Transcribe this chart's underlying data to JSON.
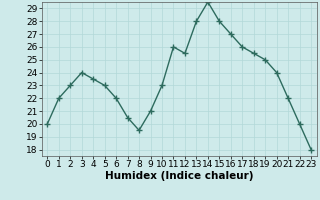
{
  "x": [
    0,
    1,
    2,
    3,
    4,
    5,
    6,
    7,
    8,
    9,
    10,
    11,
    12,
    13,
    14,
    15,
    16,
    17,
    18,
    19,
    20,
    21,
    22,
    23
  ],
  "y": [
    20,
    22,
    23,
    24,
    23.5,
    23,
    22,
    20.5,
    19.5,
    21,
    23,
    26,
    25.5,
    28,
    29.5,
    28,
    27,
    26,
    25.5,
    25,
    24,
    22,
    20,
    18
  ],
  "line_color": "#2d6b5e",
  "marker": "+",
  "marker_size": 4,
  "bg_color": "#ceeaea",
  "grid_color": "#b2d8d8",
  "xlabel": "Humidex (Indice chaleur)",
  "xlim": [
    -0.5,
    23.5
  ],
  "ylim": [
    17.5,
    29.5
  ],
  "yticks": [
    18,
    19,
    20,
    21,
    22,
    23,
    24,
    25,
    26,
    27,
    28,
    29
  ],
  "xtick_labels": [
    "0",
    "1",
    "2",
    "3",
    "4",
    "5",
    "6",
    "7",
    "8",
    "9",
    "10",
    "11",
    "12",
    "13",
    "14",
    "15",
    "16",
    "17",
    "18",
    "19",
    "20",
    "21",
    "22",
    "23"
  ],
  "tick_fontsize": 6.5,
  "xlabel_fontsize": 7.5,
  "line_width": 1.0
}
